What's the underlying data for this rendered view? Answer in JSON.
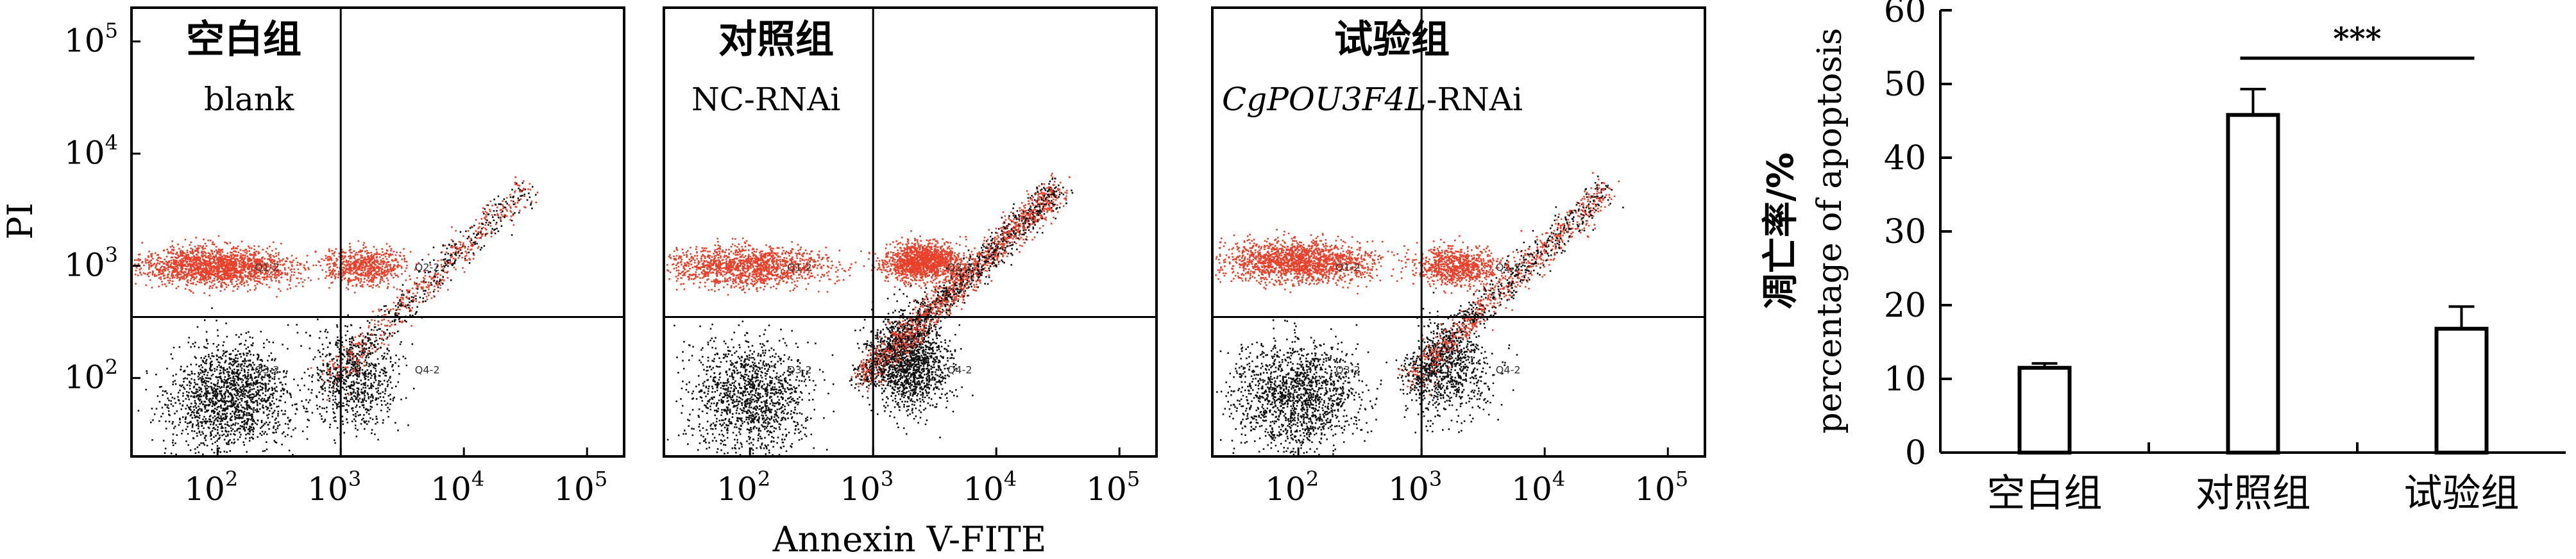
{
  "chart_data": [
    {
      "type": "scatter",
      "panels": [
        {
          "title": "空白组",
          "subtitle": "blank",
          "subtitle_italic_part": "",
          "subtitle_rest": "blank"
        },
        {
          "title": "对照组",
          "subtitle": "NC-RNAi",
          "subtitle_italic_part": "",
          "subtitle_rest": "NC-RNAi"
        },
        {
          "title": "试验组",
          "subtitle": "CgPOU3F4L-RNAi",
          "subtitle_italic_part": "CgPOU3F4L",
          "subtitle_rest": "-RNAi"
        }
      ],
      "quadrant_labels": [
        "Q1-2",
        "Q2-2",
        "Q3-2",
        "Q4-2"
      ],
      "xlabel": "Annexin V-FITE",
      "ylabel": "PI",
      "log_scale": true,
      "x_ticks": [
        "10",
        "10",
        "10",
        "10"
      ],
      "x_tick_exponents": [
        "2",
        "3",
        "4",
        "5"
      ],
      "y_ticks": [
        "10",
        "10",
        "10",
        "10"
      ],
      "y_tick_exponents": [
        "2",
        "3",
        "4",
        "5"
      ],
      "x_tick_values": [
        100,
        1000,
        10000,
        100000
      ],
      "y_tick_values": [
        100,
        1000,
        10000,
        100000
      ],
      "xlim": [
        20,
        200000
      ],
      "ylim": [
        20,
        200000
      ],
      "quadrant_gate_x": 1000,
      "quadrant_gate_y": 350,
      "point_colors": [
        "#e8402a",
        "#111111"
      ]
    },
    {
      "type": "bar",
      "categories": [
        "空白组",
        "对照组",
        "试验组"
      ],
      "values": [
        11.5,
        45.8,
        16.8
      ],
      "errors": [
        0.6,
        3.5,
        3.0
      ],
      "ylabel_cn": "凋亡率/%",
      "ylabel_en": "percentage of apoptosis",
      "ylim": [
        0,
        60
      ],
      "yticks": [
        "0",
        "10",
        "20",
        "30",
        "40",
        "50",
        "60"
      ],
      "ytick_values": [
        0,
        10,
        20,
        30,
        40,
        50,
        60
      ],
      "significance": "***",
      "significance_between": [
        1,
        2
      ]
    }
  ]
}
